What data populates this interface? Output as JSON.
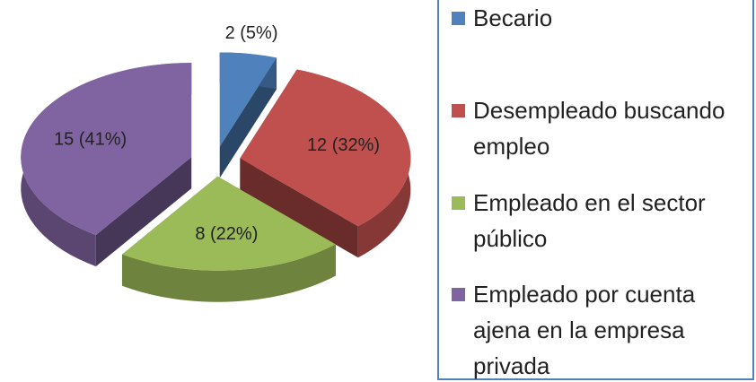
{
  "chart_data": {
    "type": "pie",
    "categories": [
      "Becario",
      "Desempleado buscando empleo",
      "Empleado en el sector público",
      "Empleado por cuenta ajena en la empresa privada"
    ],
    "values": [
      2,
      12,
      8,
      15
    ],
    "value_labels": [
      "2 (5%)",
      "12 (32%)",
      "8 (22%)",
      "15 (41%)"
    ],
    "colors": [
      "#4f81bd",
      "#c0504d",
      "#9bbb59",
      "#8064a2"
    ],
    "legend": "right"
  }
}
